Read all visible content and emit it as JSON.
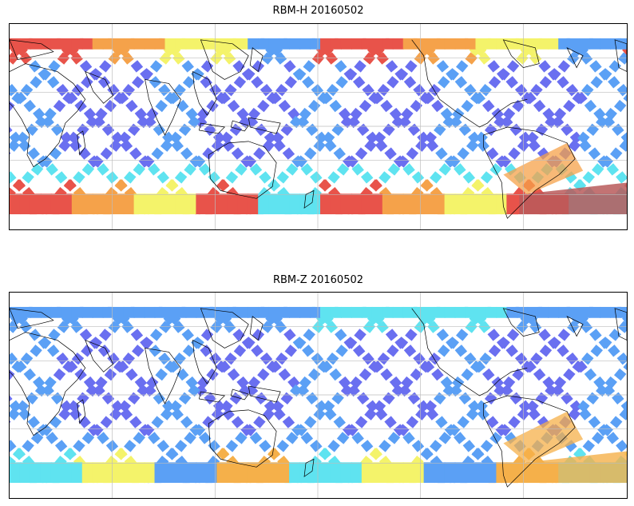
{
  "panels": [
    {
      "title": "RBM-H 20160502",
      "palette": [
        "#6a6ff0",
        "#5ba0f5",
        "#5fe3f0",
        "#f4f36a",
        "#f5a24a",
        "#e8534a",
        "#b85a5a"
      ],
      "high_latitude_levels": "high",
      "features": {
        "north_edge_colors": "orange-red-yellow",
        "south_edge_colors": "red-orange-yellow",
        "south_atlantic_patch": "dark red"
      }
    },
    {
      "title": "RBM-Z 20160502",
      "palette": [
        "#6a6ff0",
        "#5ba0f5",
        "#5fe3f0",
        "#f4f36a",
        "#f5b04a",
        "#e8734a"
      ],
      "high_latitude_levels": "moderate",
      "features": {
        "north_edge_colors": "light blue-cyan",
        "south_edge_colors": "cyan-yellow-orange",
        "south_atlantic_patch": "orange"
      }
    }
  ],
  "grid": {
    "visible": true,
    "color": "#bdbdbd"
  },
  "coastline_color": "#000000"
}
